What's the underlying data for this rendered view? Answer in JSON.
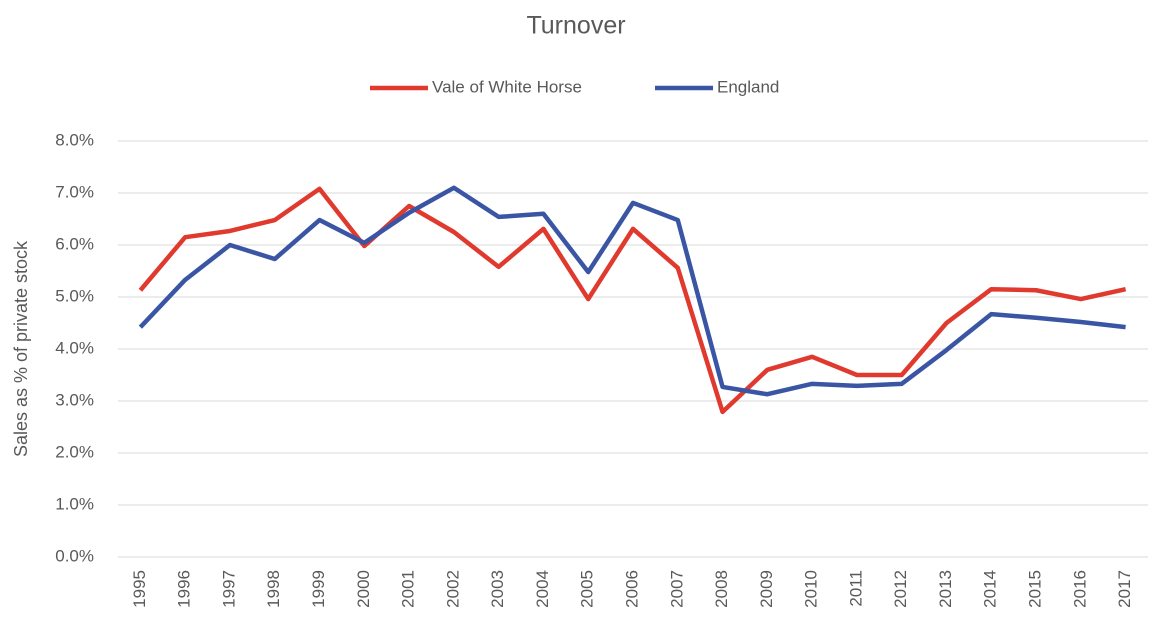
{
  "chart_data": {
    "type": "line",
    "title": "Turnover",
    "y_label": "Sales as % of private stock",
    "categories": [
      "1995",
      "1996",
      "1997",
      "1998",
      "1999",
      "2000",
      "2001",
      "2002",
      "2003",
      "2004",
      "2005",
      "2006",
      "2007",
      "2008",
      "2009",
      "2010",
      "2011",
      "2012",
      "2013",
      "2014",
      "2015",
      "2016",
      "2017"
    ],
    "series": [
      {
        "name": "Vale of White Horse",
        "color": "#e03a2f",
        "values": [
          5.13,
          6.15,
          6.27,
          6.48,
          7.08,
          5.98,
          6.75,
          6.25,
          5.58,
          6.31,
          4.96,
          6.31,
          5.56,
          2.79,
          3.6,
          3.85,
          3.5,
          3.5,
          4.5,
          5.15,
          5.13,
          4.96,
          5.15
        ]
      },
      {
        "name": "England",
        "color": "#3a55a4",
        "values": [
          4.42,
          5.33,
          6.0,
          5.73,
          6.48,
          6.04,
          6.62,
          7.1,
          6.54,
          6.6,
          5.48,
          6.81,
          6.48,
          3.27,
          3.13,
          3.33,
          3.29,
          3.33,
          3.98,
          4.67,
          4.6,
          4.52,
          4.42
        ]
      }
    ],
    "ylim": [
      0,
      8
    ],
    "yticks": [
      {
        "value": 0,
        "label": "0.0%"
      },
      {
        "value": 1,
        "label": "1.0%"
      },
      {
        "value": 2,
        "label": "2.0%"
      },
      {
        "value": 3,
        "label": "3.0%"
      },
      {
        "value": 4,
        "label": "4.0%"
      },
      {
        "value": 5,
        "label": "5.0%"
      },
      {
        "value": 6,
        "label": "6.0%"
      },
      {
        "value": 7,
        "label": "7.0%"
      },
      {
        "value": 8,
        "label": "8.0%"
      }
    ],
    "grid": true,
    "legend": "top"
  }
}
